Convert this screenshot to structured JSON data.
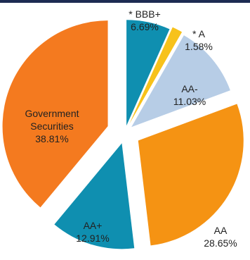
{
  "header": {
    "bar_color": "#1d2b52"
  },
  "chart_data": {
    "type": "pie",
    "style": "exploded",
    "slices": [
      {
        "label": "* BBB+",
        "value": 6.69,
        "value_text": "6.69%",
        "color": "#0f8fb0"
      },
      {
        "label": "* A",
        "value": 1.58,
        "value_text": "1.58%",
        "color": "#f7c21b"
      },
      {
        "label": "AA-",
        "value": 11.03,
        "value_text": "11.03%",
        "color": "#b7cde6"
      },
      {
        "label": "AA",
        "value": 28.65,
        "value_text": "28.65%",
        "color": "#f59313"
      },
      {
        "label": "AA+",
        "value": 12.91,
        "value_text": "12.91%",
        "color": "#0f8fb0"
      },
      {
        "label": "Government Securities",
        "value": 38.81,
        "value_text": "38.81%",
        "color": "#f47a1f"
      }
    ]
  }
}
